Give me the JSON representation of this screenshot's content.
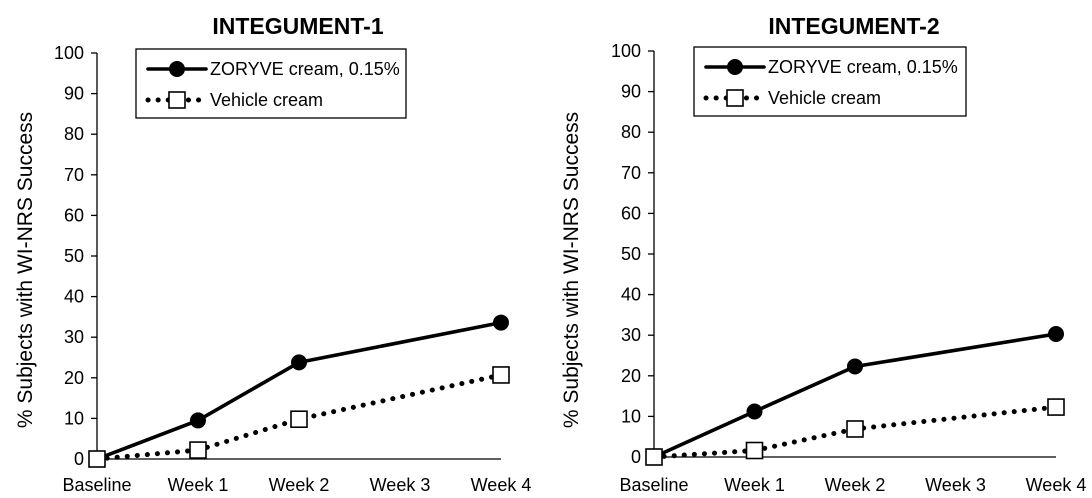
{
  "chart_data": [
    {
      "type": "line",
      "title": "INTEGUMENT-1",
      "ylabel": "% Subjects with WI-NRS Success",
      "xlabel": "",
      "ylim": [
        0,
        100
      ],
      "yticks": [
        0,
        10,
        20,
        30,
        40,
        50,
        60,
        70,
        80,
        90,
        100
      ],
      "categories": [
        "Baseline",
        "Week 1",
        "Week 2",
        "Week 3",
        "Week 4"
      ],
      "legend_position": "top",
      "grid": false,
      "series": [
        {
          "name": "ZORYVE cream, 0.15%",
          "style": "solid",
          "marker": "filled-circle",
          "color": "#000000",
          "points": [
            {
              "x": "Baseline",
              "y": 0
            },
            {
              "x": "Week 1",
              "y": 9.5
            },
            {
              "x": "Week 2",
              "y": 23.8
            },
            {
              "x": "Week 4",
              "y": 33.6
            }
          ]
        },
        {
          "name": "Vehicle cream",
          "style": "dotted",
          "marker": "open-square",
          "color": "#000000",
          "points": [
            {
              "x": "Baseline",
              "y": 0
            },
            {
              "x": "Week 1",
              "y": 2.2
            },
            {
              "x": "Week 2",
              "y": 9.8
            },
            {
              "x": "Week 4",
              "y": 20.7
            }
          ]
        }
      ]
    },
    {
      "type": "line",
      "title": "INTEGUMENT-2",
      "ylabel": "% Subjects with WI-NRS Success",
      "xlabel": "",
      "ylim": [
        0,
        100
      ],
      "yticks": [
        0,
        10,
        20,
        30,
        40,
        50,
        60,
        70,
        80,
        90,
        100
      ],
      "categories": [
        "Baseline",
        "Week 1",
        "Week 2",
        "Week 3",
        "Week 4"
      ],
      "legend_position": "top",
      "grid": false,
      "series": [
        {
          "name": "ZORYVE cream, 0.15%",
          "style": "solid",
          "marker": "filled-circle",
          "color": "#000000",
          "points": [
            {
              "x": "Baseline",
              "y": 0
            },
            {
              "x": "Week 1",
              "y": 11.2
            },
            {
              "x": "Week 2",
              "y": 22.3
            },
            {
              "x": "Week 4",
              "y": 30.3
            }
          ]
        },
        {
          "name": "Vehicle cream",
          "style": "dotted",
          "marker": "open-square",
          "color": "#000000",
          "points": [
            {
              "x": "Baseline",
              "y": 0
            },
            {
              "x": "Week 1",
              "y": 1.6
            },
            {
              "x": "Week 2",
              "y": 6.9
            },
            {
              "x": "Week 4",
              "y": 12.3
            }
          ]
        }
      ]
    }
  ]
}
